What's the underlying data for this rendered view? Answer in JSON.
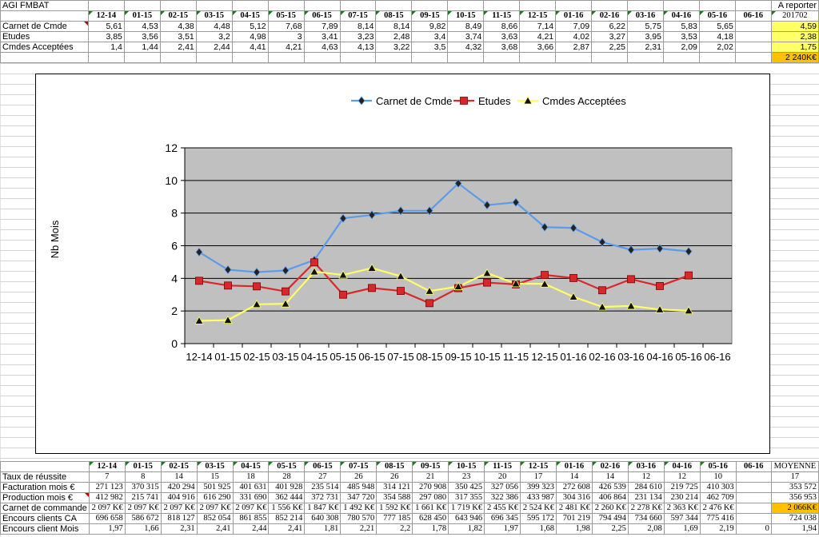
{
  "top": {
    "app_title": "AGI FMBAT",
    "report_label": "A reporter",
    "report_code": "201702",
    "months": [
      "12-14",
      "01-15",
      "02-15",
      "03-15",
      "04-15",
      "05-15",
      "06-15",
      "07-15",
      "08-15",
      "09-15",
      "10-15",
      "11-15",
      "12-15",
      "01-16",
      "02-16",
      "03-16",
      "04-16",
      "05-16",
      "06-16"
    ],
    "rows": [
      {
        "label": "Carnet de Cmde",
        "values": [
          "5,61",
          "4,53",
          "4,38",
          "4,48",
          "5,12",
          "7,68",
          "7,89",
          "8,14",
          "8,14",
          "9,82",
          "8,49",
          "8,66",
          "7,14",
          "7,09",
          "6,22",
          "5,75",
          "5,83",
          "5,65",
          ""
        ],
        "report": "4,59"
      },
      {
        "label": "Etudes",
        "values": [
          "3,85",
          "3,56",
          "3,51",
          "3,2",
          "4,98",
          "3",
          "3,41",
          "3,23",
          "2,48",
          "3,4",
          "3,74",
          "3,63",
          "4,21",
          "4,02",
          "3,27",
          "3,95",
          "3,53",
          "4,18",
          ""
        ],
        "report": "2,38"
      },
      {
        "label": "Cmdes Acceptées",
        "values": [
          "1,4",
          "1,44",
          "2,41",
          "2,44",
          "4,41",
          "4,21",
          "4,63",
          "4,13",
          "3,22",
          "3,5",
          "4,32",
          "3,68",
          "3,66",
          "2,87",
          "2,25",
          "2,31",
          "2,09",
          "2,02",
          ""
        ],
        "report": "1,75"
      }
    ],
    "report_total": "2 240K€"
  },
  "chart_data": {
    "type": "line",
    "categories": [
      "12-14",
      "01-15",
      "02-15",
      "03-15",
      "04-15",
      "05-15",
      "06-15",
      "07-15",
      "08-15",
      "09-15",
      "10-15",
      "11-15",
      "12-15",
      "01-16",
      "02-16",
      "03-16",
      "04-16",
      "05-16",
      "06-16"
    ],
    "series": [
      {
        "name": "Carnet de Cmde",
        "color": "#5b9bea",
        "marker": "diamond",
        "values": [
          5.61,
          4.53,
          4.38,
          4.48,
          5.12,
          7.68,
          7.89,
          8.14,
          8.14,
          9.82,
          8.49,
          8.66,
          7.14,
          7.09,
          6.22,
          5.75,
          5.83,
          5.65,
          null
        ]
      },
      {
        "name": "Etudes",
        "color": "#d8282b",
        "marker": "square",
        "values": [
          3.85,
          3.56,
          3.51,
          3.2,
          4.98,
          3,
          3.41,
          3.23,
          2.48,
          3.4,
          3.74,
          3.63,
          4.21,
          4.02,
          3.27,
          3.95,
          3.53,
          4.18,
          null
        ]
      },
      {
        "name": "Cmdes Acceptées",
        "color": "#ffff66",
        "marker": "triangle",
        "values": [
          1.4,
          1.44,
          2.41,
          2.44,
          4.41,
          4.21,
          4.63,
          4.13,
          3.22,
          3.5,
          4.32,
          3.68,
          3.66,
          2.87,
          2.25,
          2.31,
          2.09,
          2.02,
          null
        ]
      }
    ],
    "title": "",
    "xlabel": "",
    "ylabel": "Nb Mois",
    "ylim": [
      0,
      12
    ],
    "yticks": [
      "0",
      "2",
      "4",
      "6",
      "8",
      "10",
      "12"
    ],
    "grid": true,
    "legend": "top",
    "plot_background": "#c0c0c0"
  },
  "bottom": {
    "months": [
      "12-14",
      "01-15",
      "02-15",
      "03-15",
      "04-15",
      "05-15",
      "06-15",
      "07-15",
      "08-15",
      "09-15",
      "10-15",
      "11-15",
      "12-15",
      "01-16",
      "02-16",
      "03-16",
      "04-16",
      "05-16",
      "06-16"
    ],
    "avg_label": "MOYENNE",
    "rows": [
      {
        "label": "Taux de réussite",
        "values": [
          "7",
          "8",
          "14",
          "15",
          "18",
          "28",
          "27",
          "26",
          "26",
          "21",
          "23",
          "20",
          "17",
          "14",
          "14",
          "12",
          "12",
          "10",
          ""
        ],
        "avg": "17"
      },
      {
        "label": "Facturation mois €",
        "values": [
          "271 123",
          "370 315",
          "420 294",
          "501 925",
          "401 631",
          "401 928",
          "235 514",
          "485 948",
          "314 121",
          "270 908",
          "350 425",
          "327 056",
          "399 323",
          "272 608",
          "426 539",
          "284 610",
          "219 725",
          "410 303",
          ""
        ],
        "avg": "353 572"
      },
      {
        "label": "Production mois €",
        "values": [
          "412 982",
          "215 741",
          "404 916",
          "616 290",
          "331 690",
          "362 444",
          "372 731",
          "347 720",
          "354 588",
          "297 080",
          "317 355",
          "322 386",
          "433 987",
          "304 316",
          "406 864",
          "231 134",
          "230 214",
          "462 709",
          ""
        ],
        "avg": "356 953"
      },
      {
        "label": "Carnet de commande",
        "values": [
          "2 097 K€",
          "2 097 K€",
          "2 097 K€",
          "2 097 K€",
          "2 097 K€",
          "1 556 K€",
          "1 847 K€",
          "1 492 K€",
          "1 592 K€",
          "1 661 K€",
          "1 719 K€",
          "2 455 K€",
          "2 524 K€",
          "2 481 K€",
          "2 260 K€",
          "2 278 K€",
          "2 363 K€",
          "2 476 K€",
          ""
        ],
        "avg": "2 066K€"
      },
      {
        "label": "Encours clients CA",
        "values": [
          "696 658",
          "586 672",
          "818 127",
          "852 054",
          "861 855",
          "852 214",
          "640 308",
          "780 570",
          "777 185",
          "628 450",
          "643 946",
          "696 345",
          "595 172",
          "701 219",
          "794 494",
          "734 660",
          "597 344",
          "775 416",
          ""
        ],
        "avg": "724 038"
      },
      {
        "label": "Encours client Mois",
        "values": [
          "1,97",
          "1,66",
          "2,31",
          "2,41",
          "2,44",
          "2,41",
          "1,81",
          "2,21",
          "2,2",
          "1,78",
          "1,82",
          "1,97",
          "1,68",
          "1,98",
          "2,25",
          "2,08",
          "1,69",
          "2,19",
          "0"
        ],
        "avg": "1,94"
      }
    ]
  }
}
